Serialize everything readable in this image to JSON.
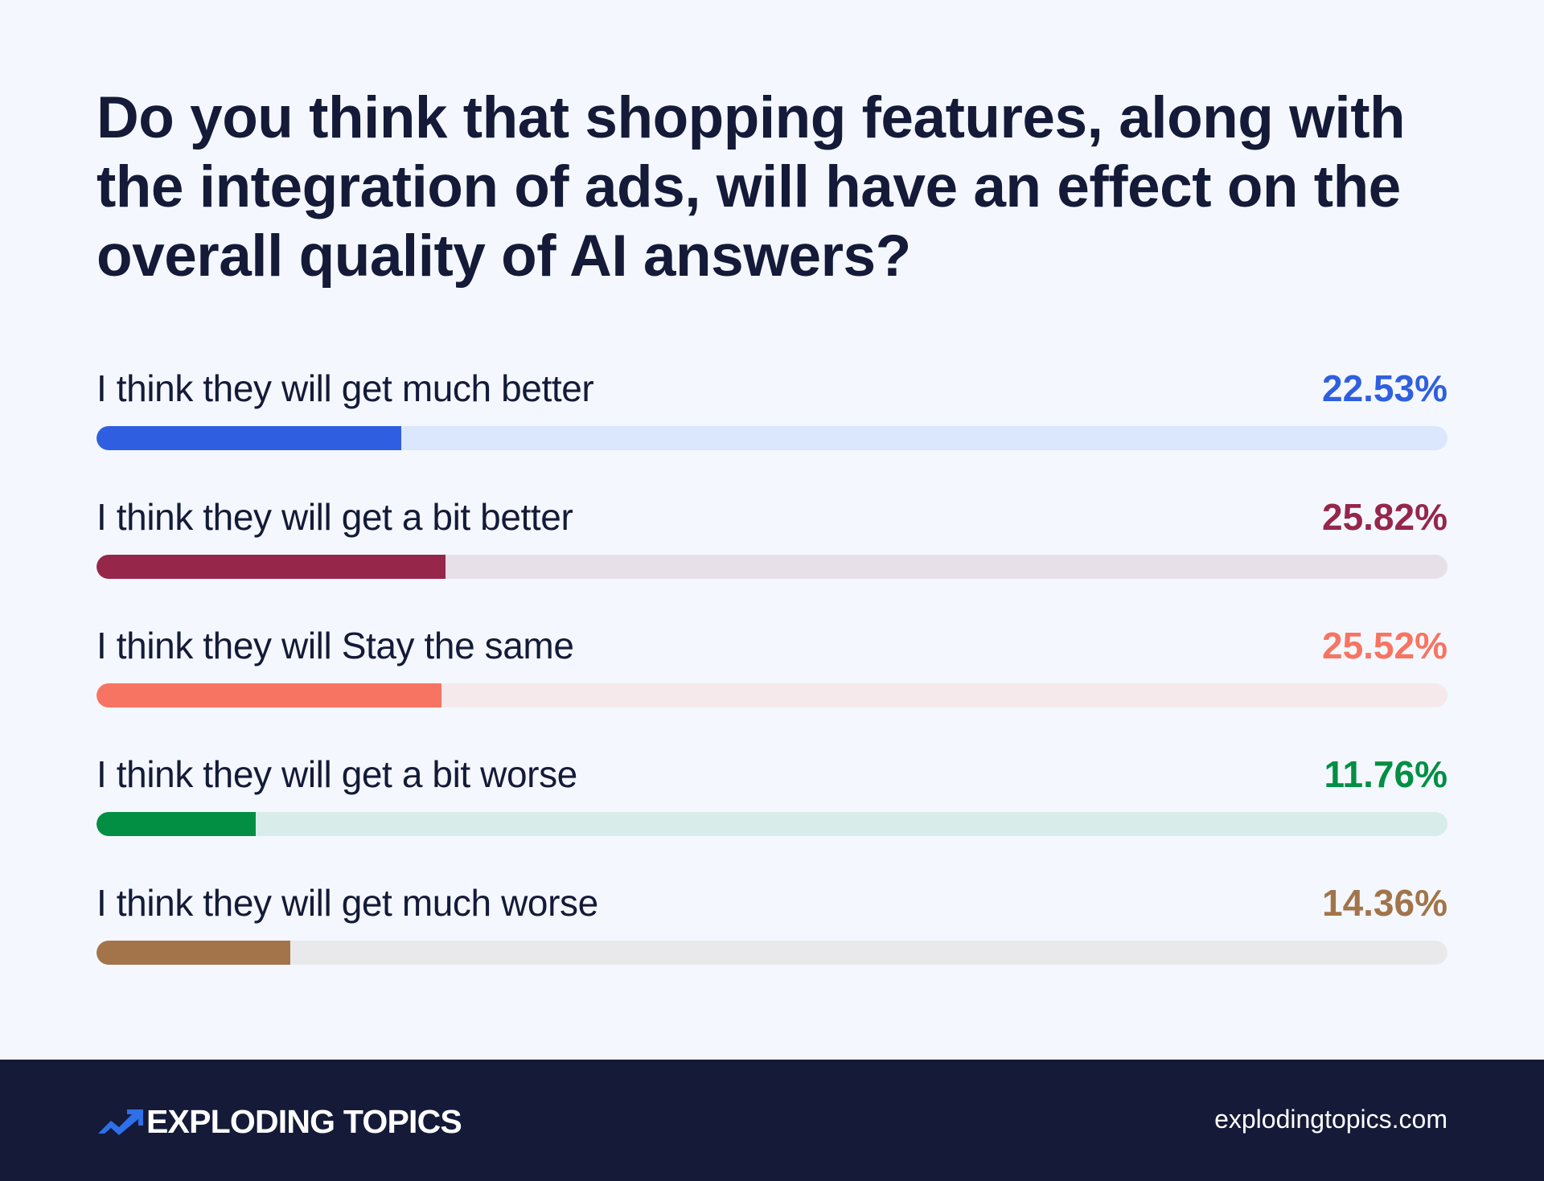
{
  "title": "Do you think that shopping features, along with the integration of ads, will have an effect on the overall quality of AI answers?",
  "rows": [
    {
      "label": "I think they will get much better",
      "value_label": "22.53%",
      "value": 22.53,
      "color": "#2f5fe0",
      "track_color": "#dbe7fc"
    },
    {
      "label": "I think they will get a bit better",
      "value_label": "25.82%",
      "value": 25.82,
      "color": "#96264a",
      "track_color": "#e8e0e8"
    },
    {
      "label": "I think they will Stay the same",
      "value_label": "25.52%",
      "value": 25.52,
      "color": "#f87462",
      "track_color": "#f6e9ec"
    },
    {
      "label": "I think they will get a bit worse",
      "value_label": "11.76%",
      "value": 11.76,
      "color": "#028f44",
      "track_color": "#d8ede9"
    },
    {
      "label": "I think they will get much worse",
      "value_label": "14.36%",
      "value": 14.36,
      "color": "#a3744a",
      "track_color": "#e9e9eb"
    }
  ],
  "footer": {
    "brand_name": "EXPLODING TOPICS",
    "brand_icon": "trending-up-arrow-icon",
    "brand_color": "#2f6fe8",
    "website": "explodingtopics.com",
    "background": "#141a38"
  },
  "chart_data": {
    "type": "bar",
    "orientation": "horizontal",
    "title": "Do you think that shopping features, along with the integration of ads, will have an effect on the overall quality of AI answers?",
    "categories": [
      "I think they will get much better",
      "I think they will get a bit better",
      "I think they will Stay the same",
      "I think they will get a bit worse",
      "I think they will get much worse"
    ],
    "values": [
      22.53,
      25.82,
      25.52,
      11.76,
      14.36
    ],
    "unit": "%",
    "xlabel": "",
    "ylabel": "",
    "xlim": [
      0,
      100
    ],
    "grid": false,
    "legend": "none",
    "colors": [
      "#2f5fe0",
      "#96264a",
      "#f87462",
      "#028f44",
      "#a3744a"
    ]
  }
}
